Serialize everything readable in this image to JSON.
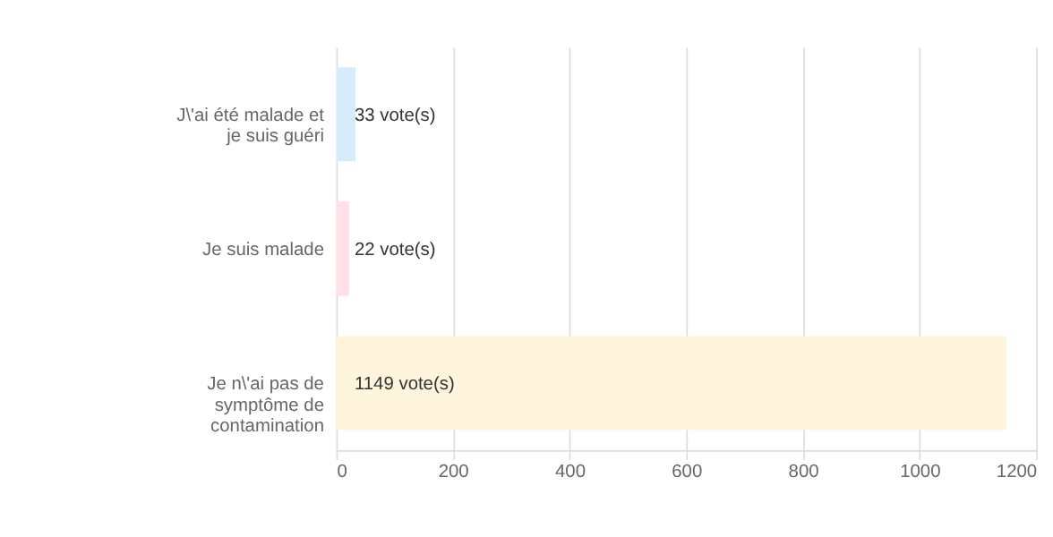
{
  "chart_data": {
    "type": "bar",
    "orientation": "horizontal",
    "categories": [
      "J\\'ai été malade et je suis guéri",
      "Je suis malade",
      "Je n\\'ai pas de symptôme de contamination"
    ],
    "values": [
      33,
      22,
      1149
    ],
    "colors": [
      "#d7ecfb",
      "#ffe0e6",
      "#fff5dd"
    ],
    "value_labels": [
      "33 vote(s)",
      "22 vote(s)",
      "1149 vote(s)"
    ],
    "xlim": [
      0,
      1200
    ],
    "xticks": [
      0,
      200,
      400,
      600,
      800,
      1000,
      1200
    ],
    "grid": true
  }
}
